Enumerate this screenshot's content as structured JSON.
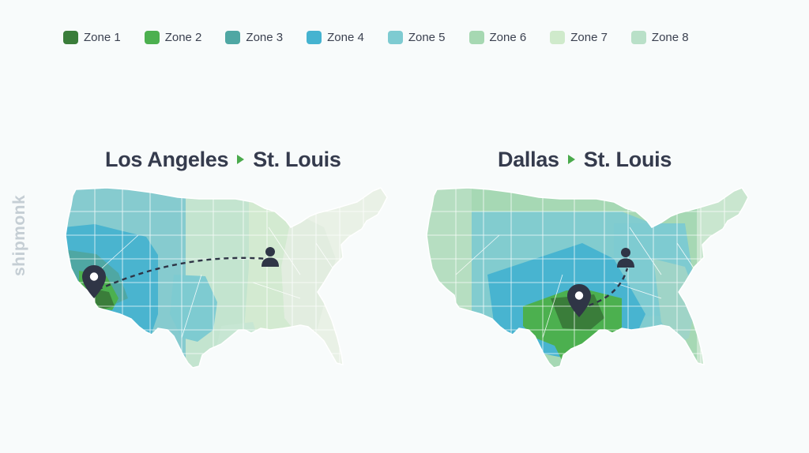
{
  "legend": [
    {
      "label": "Zone 1",
      "color": "#3a7d3a"
    },
    {
      "label": "Zone 2",
      "color": "#4cb04f"
    },
    {
      "label": "Zone 3",
      "color": "#4fa7a3"
    },
    {
      "label": "Zone 4",
      "color": "#45b3d0"
    },
    {
      "label": "Zone 5",
      "color": "#7ecbd1"
    },
    {
      "label": "Zone 6",
      "color": "#a6d8b2"
    },
    {
      "label": "Zone 7",
      "color": "#cfeacb"
    },
    {
      "label": "Zone 8",
      "color": "#b9e0c8"
    }
  ],
  "watermark": "shipmonk",
  "maps": [
    {
      "origin": "Los Angeles",
      "destination": "St. Louis"
    },
    {
      "origin": "Dallas",
      "destination": "St. Louis"
    }
  ]
}
